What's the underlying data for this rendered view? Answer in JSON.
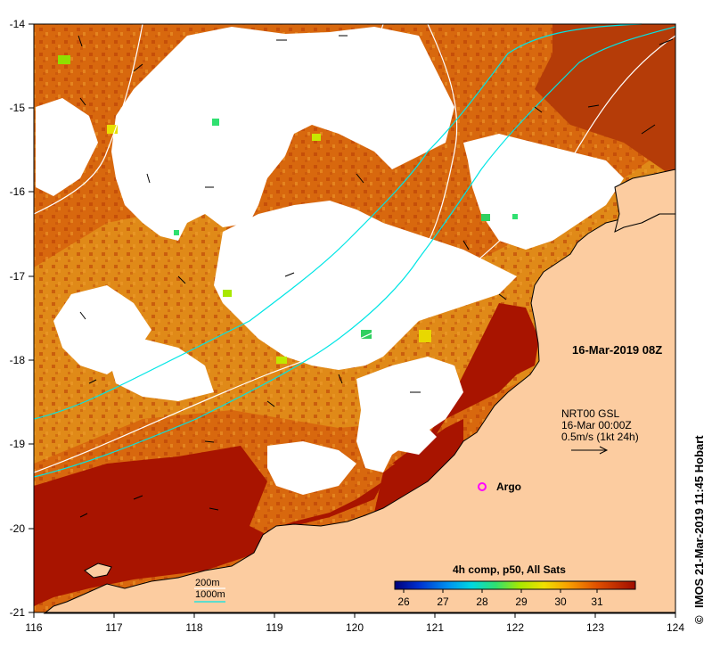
{
  "map": {
    "date_label": "16-Mar-2019 08Z",
    "credit": "IMOS 21-Mar-2019 11:45 Hobart",
    "credit_symbol": "©",
    "current_info": {
      "line1": "NRT00 GSL",
      "line2": "16-Mar 00:00Z",
      "line3": "0.5m/s (1kt 24h)"
    },
    "argo_label": "Argo",
    "isobath_legend": {
      "label_200": "200m",
      "label_1000": "1000m",
      "color_200": "#ffffff",
      "color_1000": "#00e5e5"
    },
    "colorbar": {
      "title": "4h comp, p50, All Sats",
      "ticks": [
        "26",
        "27",
        "28",
        "29",
        "30",
        "31"
      ]
    },
    "x_axis_ticks": [
      "116",
      "117",
      "118",
      "119",
      "120",
      "121",
      "122",
      "123",
      "124"
    ],
    "y_axis_ticks": [
      "-14",
      "-15",
      "-16",
      "-17",
      "-18",
      "-19",
      "-20",
      "-21"
    ],
    "colors": {
      "land": "#fccca0",
      "sst_hot": "#a81400",
      "sst_warm": "#d8620a",
      "sst_mid": "#ec9a1c",
      "cloud": "#ffffff",
      "argo": "#ff00ff"
    }
  }
}
